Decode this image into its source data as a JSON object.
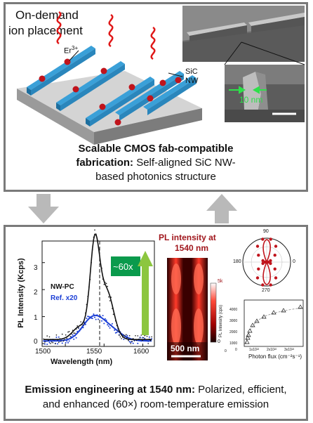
{
  "top": {
    "label_line1": "On-demand",
    "label_line2": "ion placement",
    "ion_label": "Er",
    "ion_sup": "3+",
    "nw_line1": "SiC",
    "nw_line2": "NW",
    "scale_label": "10 nm",
    "caption_bold_1": "Scalable CMOS fab-compatible",
    "caption_bold_2": "fabrication:",
    "caption_rest_2": " Self-aligned SiC NW-",
    "caption_line3": "based photonics structure"
  },
  "spectrum": {
    "ylabel": "PL Intensity (Kcps)",
    "xlabel": "Wavelength (nm)",
    "legend_nw": "NW-PC",
    "legend_ref": "Ref. x20",
    "enhancement": "~60x",
    "xticks": [
      "1500",
      "1550",
      "1600"
    ],
    "yticks": [
      "0",
      "1",
      "2",
      "3"
    ]
  },
  "map": {
    "title_line1": "PL intensity at",
    "title_line2": "1540 nm",
    "scalebar": "500 nm",
    "cbar_top": "5k",
    "cbar_bottom": "0"
  },
  "polar": {
    "labels": [
      "90",
      "180",
      "0",
      "270"
    ]
  },
  "saturation": {
    "ylabel": "PL Intensity (cps)",
    "xlabel": "Photon flux (cm⁻²s⁻¹)",
    "yticks": [
      "0",
      "1000",
      "2000",
      "3000",
      "4000"
    ],
    "xticks": [
      "0",
      "1x10²²",
      "2x10²²",
      "3x10²²"
    ]
  },
  "bottom_caption": {
    "bold": "Emission engineering at 1540 nm:",
    "rest1": " Polarized, efficient,",
    "line2": "and enhanced (60×) room-temperature emission"
  },
  "colors": {
    "nanowire": "#3aa0d8",
    "ion": "#c0141c",
    "nw_pc": "#111111",
    "ref": "#1c3fd6",
    "arrow_green": "#8cc63f",
    "box_green": "#0a9a4c",
    "map_title": "#a0161c",
    "frame": "#7a7a7a"
  }
}
